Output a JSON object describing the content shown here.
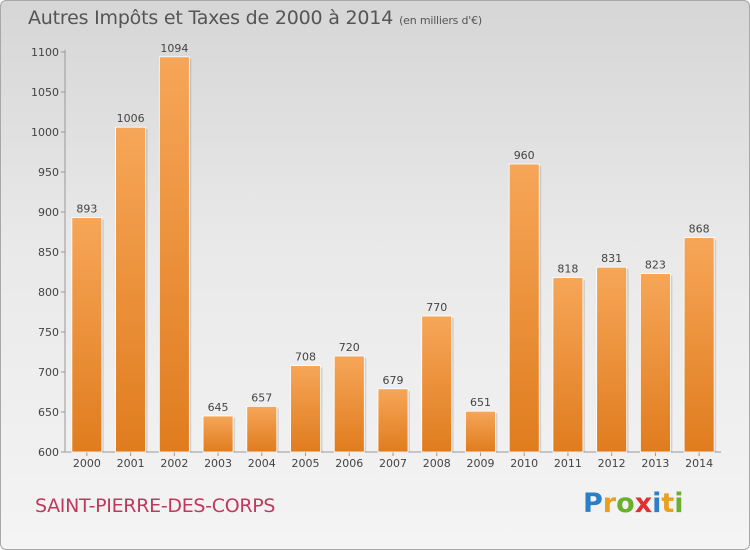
{
  "header": {
    "title": "Autres Impôts et Taxes de 2000 à 2014",
    "subtitle": "(en milliers d'€)"
  },
  "footer": {
    "city": "SAINT-PIERRE-DES-CORPS",
    "logo_letters": [
      "P",
      "r",
      "o",
      "x",
      "i",
      "t",
      "i"
    ],
    "logo_colors": [
      "#2a7fc6",
      "#e8a020",
      "#6ab02e",
      "#e03030",
      "#2a7fc6",
      "#e8a020",
      "#6ab02e"
    ]
  },
  "chart_data": {
    "type": "bar",
    "categories": [
      "2000",
      "2001",
      "2002",
      "2003",
      "2004",
      "2005",
      "2006",
      "2007",
      "2008",
      "2009",
      "2010",
      "2011",
      "2012",
      "2013",
      "2014"
    ],
    "values": [
      893,
      1006,
      1094,
      645,
      657,
      708,
      720,
      679,
      770,
      651,
      960,
      818,
      831,
      823,
      868
    ],
    "ylim": [
      600,
      1100
    ],
    "yticks": [
      600,
      650,
      700,
      750,
      800,
      850,
      900,
      950,
      1000,
      1050,
      1100
    ],
    "xlabel": "",
    "ylabel": "",
    "grid": false,
    "bar_color_top": "#f6a658",
    "bar_color_bottom": "#e07c1e"
  }
}
